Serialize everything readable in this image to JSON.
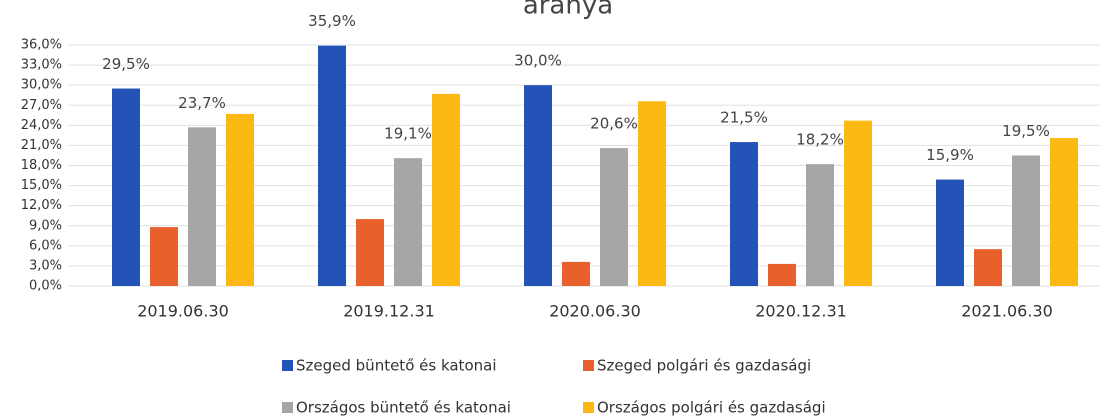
{
  "chart_data": {
    "type": "bar",
    "title": "aránya",
    "categories": [
      "2019.06.30",
      "2019.12.31",
      "2020.06.30",
      "2020.12.31",
      "2021.06.30"
    ],
    "series": [
      {
        "name": "Szeged büntető és katonai",
        "color": "#2453b8",
        "values": [
          29.5,
          35.9,
          30.0,
          21.5,
          15.9
        ],
        "value_labels": [
          "29,5%",
          "35,9%",
          "30,0%",
          "21,5%",
          "15,9%"
        ]
      },
      {
        "name": "Szeged polgári és gazdasági",
        "color": "#e8612c",
        "values": [
          8.8,
          10.0,
          3.6,
          3.3,
          5.5
        ]
      },
      {
        "name": "Országos büntető és katonai",
        "color": "#a6a6a6",
        "values": [
          23.7,
          19.1,
          20.6,
          18.2,
          19.5
        ],
        "value_labels": [
          "23,7%",
          "19,1%",
          "20,6%",
          "18,2%",
          "19,5%"
        ]
      },
      {
        "name": "Országos polgári és gazdasági",
        "color": "#fdb913",
        "values": [
          25.7,
          28.7,
          27.6,
          24.7,
          22.1
        ]
      }
    ],
    "ylim": [
      0,
      36
    ],
    "yticks": [
      {
        "value": 0,
        "label": "0,0%"
      },
      {
        "value": 3,
        "label": "3,0%"
      },
      {
        "value": 6,
        "label": "6,0%"
      },
      {
        "value": 9,
        "label": "9,0%"
      },
      {
        "value": 12,
        "label": "12,0%"
      },
      {
        "value": 15,
        "label": "15,0%"
      },
      {
        "value": 18,
        "label": "18,0%"
      },
      {
        "value": 21,
        "label": "21,0%"
      },
      {
        "value": 24,
        "label": "24,0%"
      },
      {
        "value": 27,
        "label": "27,0%"
      },
      {
        "value": 30,
        "label": "30,0%"
      },
      {
        "value": 33,
        "label": "33,0%"
      },
      {
        "value": 36,
        "label": "36,0%"
      }
    ],
    "grid": true
  }
}
